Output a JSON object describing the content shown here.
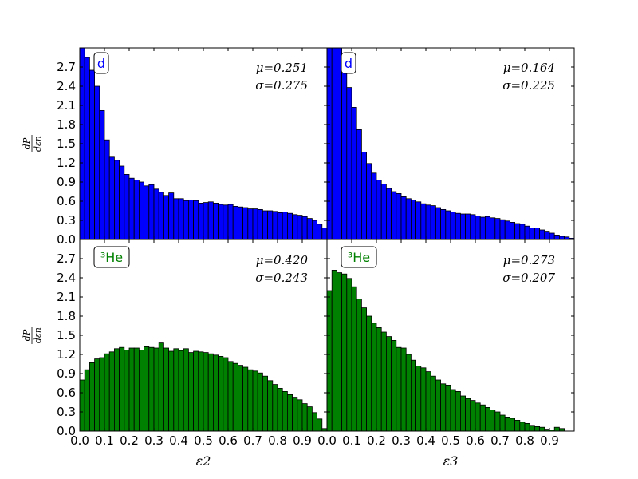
{
  "colors": {
    "blue": "#0000ff",
    "green": "#008000"
  },
  "ylabel_num": "dP",
  "ylabel_den": "dεn",
  "chart_data": [
    {
      "type": "bar",
      "panel": "top-left",
      "color": "#0000ff",
      "label": "d",
      "mu_text": "μ=0.251",
      "sigma_text": "σ=0.275",
      "xlabel": "",
      "xlim": [
        0,
        1.0
      ],
      "ylim": [
        0,
        3.0
      ],
      "bin_width": 0.02,
      "values": [
        3.0,
        2.85,
        2.65,
        2.4,
        2.02,
        1.56,
        1.29,
        1.24,
        1.15,
        1.02,
        0.96,
        0.93,
        0.9,
        0.84,
        0.86,
        0.79,
        0.74,
        0.69,
        0.73,
        0.64,
        0.64,
        0.61,
        0.62,
        0.61,
        0.57,
        0.58,
        0.59,
        0.57,
        0.55,
        0.54,
        0.55,
        0.52,
        0.51,
        0.5,
        0.48,
        0.48,
        0.47,
        0.45,
        0.45,
        0.44,
        0.42,
        0.43,
        0.41,
        0.39,
        0.38,
        0.36,
        0.33,
        0.3,
        0.24,
        0.18
      ]
    },
    {
      "type": "bar",
      "panel": "top-right",
      "color": "#0000ff",
      "label": "d",
      "mu_text": "μ=0.164",
      "sigma_text": "σ=0.225",
      "xlabel": "",
      "xlim": [
        0,
        1.0
      ],
      "ylim": [
        0,
        3.0
      ],
      "bin_width": 0.02,
      "values": [
        3.0,
        3.0,
        3.0,
        2.72,
        2.38,
        2.07,
        1.72,
        1.37,
        1.19,
        1.04,
        0.93,
        0.87,
        0.8,
        0.75,
        0.72,
        0.67,
        0.64,
        0.62,
        0.59,
        0.56,
        0.54,
        0.53,
        0.5,
        0.47,
        0.45,
        0.43,
        0.41,
        0.4,
        0.4,
        0.39,
        0.37,
        0.35,
        0.36,
        0.34,
        0.33,
        0.31,
        0.29,
        0.27,
        0.25,
        0.24,
        0.21,
        0.18,
        0.18,
        0.15,
        0.13,
        0.1,
        0.07,
        0.05,
        0.04,
        0.02
      ]
    },
    {
      "type": "bar",
      "panel": "bottom-left",
      "color": "#008000",
      "label": "³He",
      "mu_text": "μ=0.420",
      "sigma_text": "σ=0.243",
      "xlabel": "ε2",
      "xlim": [
        0,
        1.0
      ],
      "ylim": [
        0,
        3.0
      ],
      "bin_width": 0.02,
      "x_ticks": [
        0.0,
        0.1,
        0.2,
        0.3,
        0.4,
        0.5,
        0.6,
        0.7,
        0.8,
        0.9
      ],
      "values": [
        0.8,
        0.96,
        1.07,
        1.13,
        1.15,
        1.21,
        1.24,
        1.29,
        1.31,
        1.27,
        1.3,
        1.3,
        1.27,
        1.32,
        1.31,
        1.3,
        1.38,
        1.3,
        1.25,
        1.29,
        1.26,
        1.29,
        1.23,
        1.25,
        1.24,
        1.23,
        1.21,
        1.19,
        1.17,
        1.15,
        1.09,
        1.06,
        1.03,
        1.0,
        0.96,
        0.94,
        0.91,
        0.86,
        0.79,
        0.73,
        0.67,
        0.62,
        0.57,
        0.53,
        0.49,
        0.43,
        0.38,
        0.29,
        0.19,
        0.04
      ]
    },
    {
      "type": "bar",
      "panel": "bottom-right",
      "color": "#008000",
      "label": "³He",
      "mu_text": "μ=0.273",
      "sigma_text": "σ=0.207",
      "xlabel": "ε3",
      "xlim": [
        0,
        1.0
      ],
      "ylim": [
        0,
        3.0
      ],
      "bin_width": 0.02,
      "x_ticks": [
        0.0,
        0.1,
        0.2,
        0.3,
        0.4,
        0.5,
        0.6,
        0.7,
        0.8,
        0.9
      ],
      "values": [
        2.2,
        2.52,
        2.48,
        2.46,
        2.39,
        2.26,
        2.07,
        1.93,
        1.8,
        1.69,
        1.62,
        1.55,
        1.48,
        1.42,
        1.31,
        1.3,
        1.2,
        1.11,
        1.02,
        0.99,
        0.93,
        0.86,
        0.8,
        0.74,
        0.72,
        0.65,
        0.62,
        0.55,
        0.51,
        0.48,
        0.44,
        0.41,
        0.37,
        0.33,
        0.3,
        0.25,
        0.22,
        0.2,
        0.17,
        0.14,
        0.12,
        0.09,
        0.07,
        0.06,
        0.03,
        0.02,
        0.06,
        0.04,
        0.0,
        0.0
      ]
    }
  ],
  "y_ticks": [
    "0.0",
    "0.3",
    "0.6",
    "0.9",
    "1.2",
    "1.5",
    "1.8",
    "2.1",
    "2.4",
    "2.7"
  ],
  "y_tick_values": [
    0.0,
    0.3,
    0.6,
    0.9,
    1.2,
    1.5,
    1.8,
    2.1,
    2.4,
    2.7
  ]
}
